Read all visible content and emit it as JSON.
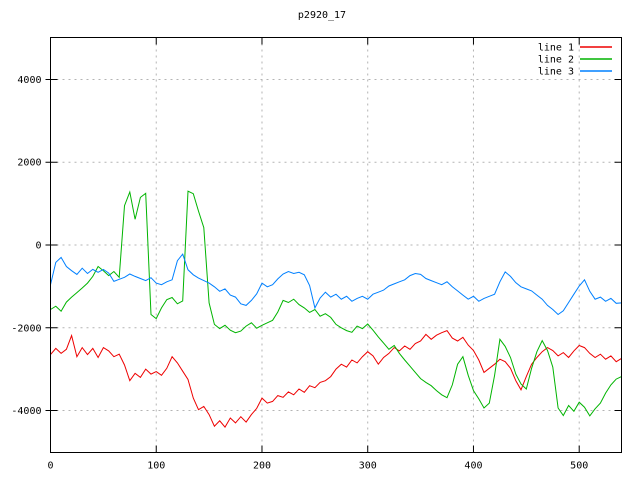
{
  "window": {
    "background": "#ffffff"
  },
  "chart_data": {
    "type": "line",
    "title": "p2920_17",
    "xlabel": "",
    "ylabel": "",
    "xlim": [
      0,
      540
    ],
    "ylim": [
      -5015,
      5015
    ],
    "xticks": [
      0,
      100,
      200,
      300,
      400,
      500
    ],
    "yticks": [
      -4000,
      -2000,
      0,
      2000,
      4000
    ],
    "grid": true,
    "grid_color": "#b4b4b4",
    "border_color": "#000000",
    "text_color": "#000000",
    "legend_position": "top-right-inside",
    "x_step": 5,
    "series": [
      {
        "name": "line 1",
        "color": "#ee0000",
        "values": [
          -2650,
          -2500,
          -2620,
          -2520,
          -2190,
          -2700,
          -2480,
          -2650,
          -2500,
          -2720,
          -2480,
          -2560,
          -2700,
          -2640,
          -2900,
          -3280,
          -3100,
          -3200,
          -3000,
          -3120,
          -3060,
          -3150,
          -2980,
          -2700,
          -2850,
          -3050,
          -3250,
          -3700,
          -3980,
          -3900,
          -4100,
          -4380,
          -4250,
          -4400,
          -4180,
          -4300,
          -4150,
          -4280,
          -4100,
          -3950,
          -3700,
          -3820,
          -3780,
          -3640,
          -3680,
          -3550,
          -3620,
          -3480,
          -3560,
          -3400,
          -3450,
          -3320,
          -3280,
          -3180,
          -3000,
          -2880,
          -2950,
          -2780,
          -2850,
          -2700,
          -2580,
          -2680,
          -2880,
          -2720,
          -2620,
          -2480,
          -2560,
          -2440,
          -2520,
          -2380,
          -2320,
          -2160,
          -2280,
          -2180,
          -2120,
          -2070,
          -2250,
          -2320,
          -2230,
          -2420,
          -2550,
          -2780,
          -3080,
          -2980,
          -2880,
          -2760,
          -2820,
          -2980,
          -3280,
          -3500,
          -3180,
          -2880,
          -2720,
          -2580,
          -2480,
          -2550,
          -2680,
          -2600,
          -2720,
          -2560,
          -2430,
          -2480,
          -2620,
          -2720,
          -2640,
          -2760,
          -2680,
          -2820,
          -2740
        ]
      },
      {
        "name": "line 2",
        "color": "#00b400",
        "values": [
          -1560,
          -1480,
          -1600,
          -1380,
          -1260,
          -1150,
          -1040,
          -920,
          -760,
          -520,
          -620,
          -740,
          -640,
          -780,
          950,
          1280,
          620,
          1150,
          1250,
          -1680,
          -1780,
          -1520,
          -1320,
          -1270,
          -1420,
          -1350,
          1300,
          1240,
          820,
          420,
          -1400,
          -1920,
          -2020,
          -1940,
          -2060,
          -2120,
          -2080,
          -1960,
          -1880,
          -2010,
          -1940,
          -1880,
          -1820,
          -1620,
          -1340,
          -1390,
          -1310,
          -1440,
          -1520,
          -1630,
          -1560,
          -1720,
          -1660,
          -1750,
          -1920,
          -2000,
          -2070,
          -2110,
          -1960,
          -2020,
          -1910,
          -2060,
          -2220,
          -2370,
          -2520,
          -2430,
          -2620,
          -2780,
          -2930,
          -3080,
          -3230,
          -3320,
          -3400,
          -3520,
          -3620,
          -3690,
          -3380,
          -2880,
          -2700,
          -3150,
          -3520,
          -3720,
          -3940,
          -3820,
          -3150,
          -2280,
          -2450,
          -2720,
          -3120,
          -3360,
          -3480,
          -2980,
          -2580,
          -2310,
          -2550,
          -2950,
          -3940,
          -4120,
          -3880,
          -4020,
          -3800,
          -3920,
          -4130,
          -3960,
          -3820,
          -3580,
          -3380,
          -3240,
          -3180
        ]
      },
      {
        "name": "line 3",
        "color": "#0080ff",
        "values": [
          -960,
          -420,
          -300,
          -520,
          -620,
          -710,
          -560,
          -690,
          -590,
          -660,
          -590,
          -680,
          -880,
          -830,
          -780,
          -700,
          -760,
          -810,
          -860,
          -790,
          -920,
          -960,
          -890,
          -840,
          -380,
          -220,
          -600,
          -720,
          -800,
          -860,
          -920,
          -1010,
          -1120,
          -1060,
          -1210,
          -1260,
          -1420,
          -1460,
          -1340,
          -1180,
          -920,
          -1010,
          -960,
          -820,
          -700,
          -640,
          -690,
          -660,
          -720,
          -980,
          -1520,
          -1280,
          -1140,
          -1260,
          -1190,
          -1310,
          -1240,
          -1360,
          -1290,
          -1240,
          -1310,
          -1190,
          -1140,
          -1090,
          -990,
          -940,
          -890,
          -840,
          -740,
          -690,
          -710,
          -810,
          -860,
          -910,
          -960,
          -890,
          -1010,
          -1110,
          -1210,
          -1310,
          -1240,
          -1360,
          -1290,
          -1240,
          -1190,
          -890,
          -650,
          -760,
          -910,
          -1010,
          -1060,
          -1110,
          -1210,
          -1310,
          -1460,
          -1560,
          -1680,
          -1590,
          -1390,
          -1190,
          -990,
          -840,
          -1120,
          -1310,
          -1260,
          -1360,
          -1290,
          -1410,
          -1400
        ]
      }
    ]
  }
}
